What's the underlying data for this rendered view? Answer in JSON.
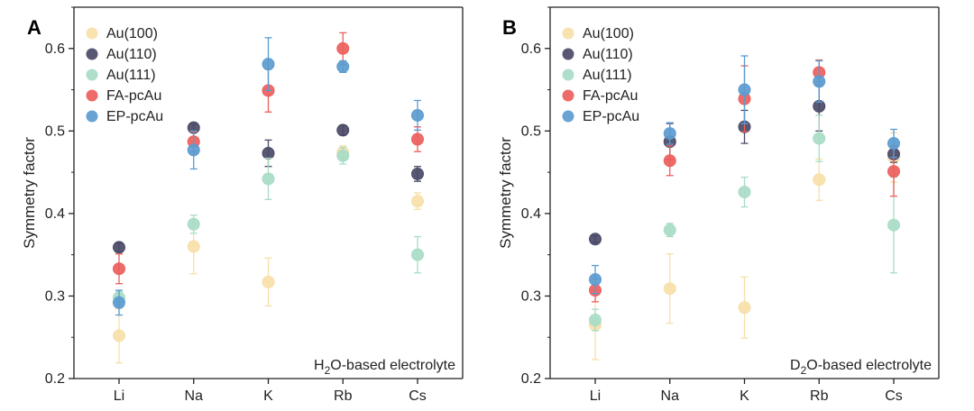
{
  "chart_data": [
    {
      "type": "scatter",
      "panel_label": "A",
      "annotation_prefix": "H",
      "annotation_sub": "2",
      "annotation_suffix": "O-based electrolyte",
      "categories": [
        "Li",
        "Na",
        "K",
        "Rb",
        "Cs"
      ],
      "ylabel": "Symmetry factor",
      "xlabel": "",
      "ylim": [
        0.2,
        0.65
      ],
      "yticks": [
        "0.2",
        "0.3",
        "0.4",
        "0.5",
        "0.6"
      ],
      "legend_position": "top-left",
      "series": [
        {
          "name": "Au(100)",
          "color": "#f7dfa9",
          "values": [
            0.252,
            0.36,
            0.317,
            0.474,
            0.415
          ],
          "errors": [
            0.033,
            0.033,
            0.029,
            0.008,
            0.01
          ]
        },
        {
          "name": "Au(110)",
          "color": "#4a4a68",
          "values": [
            0.359,
            0.504,
            0.473,
            0.501,
            0.448
          ],
          "errors": [
            0.005,
            0.004,
            0.016,
            0.006,
            0.009
          ]
        },
        {
          "name": "Au(111)",
          "color": "#a8dcc6",
          "values": [
            0.298,
            0.387,
            0.442,
            0.47,
            0.35
          ],
          "errors": [
            0.008,
            0.011,
            0.025,
            0.01,
            0.022
          ]
        },
        {
          "name": "FA-pcAu",
          "color": "#ec5f5c",
          "values": [
            0.333,
            0.487,
            0.549,
            0.6,
            0.49
          ],
          "errors": [
            0.018,
            0.012,
            0.026,
            0.019,
            0.015
          ]
        },
        {
          "name": "EP-pcAu",
          "color": "#5b9bd0",
          "values": [
            0.292,
            0.477,
            0.581,
            0.578,
            0.519
          ],
          "errors": [
            0.015,
            0.023,
            0.032,
            0.007,
            0.018
          ]
        }
      ]
    },
    {
      "type": "scatter",
      "panel_label": "B",
      "annotation_prefix": "D",
      "annotation_sub": "2",
      "annotation_suffix": "O-based electrolyte",
      "categories": [
        "Li",
        "Na",
        "K",
        "Rb",
        "Cs"
      ],
      "ylabel": "Symmetry factor",
      "xlabel": "",
      "ylim": [
        0.2,
        0.65
      ],
      "yticks": [
        "0.2",
        "0.3",
        "0.4",
        "0.5",
        "0.6"
      ],
      "legend_position": "top-left",
      "series": [
        {
          "name": "Au(100)",
          "color": "#f7dfa9",
          "values": [
            0.265,
            0.309,
            0.286,
            0.441,
            0.468
          ],
          "errors": [
            0.042,
            0.042,
            0.037,
            0.025,
            0.03
          ]
        },
        {
          "name": "Au(110)",
          "color": "#4a4a68",
          "values": [
            0.369,
            0.487,
            0.505,
            0.53,
            0.472
          ],
          "errors": [
            0.004,
            0.022,
            0.02,
            0.03,
            0.01
          ]
        },
        {
          "name": "Au(111)",
          "color": "#a8dcc6",
          "values": [
            0.271,
            0.38,
            0.426,
            0.491,
            0.386
          ],
          "errors": [
            0.013,
            0.008,
            0.018,
            0.028,
            0.058
          ]
        },
        {
          "name": "FA-pcAu",
          "color": "#ec5f5c",
          "values": [
            0.307,
            0.464,
            0.539,
            0.571,
            0.451
          ],
          "errors": [
            0.014,
            0.018,
            0.04,
            0.015,
            0.03
          ]
        },
        {
          "name": "EP-pcAu",
          "color": "#5b9bd0",
          "values": [
            0.32,
            0.497,
            0.55,
            0.56,
            0.485
          ],
          "errors": [
            0.017,
            0.013,
            0.041,
            0.025,
            0.017
          ]
        }
      ]
    }
  ]
}
